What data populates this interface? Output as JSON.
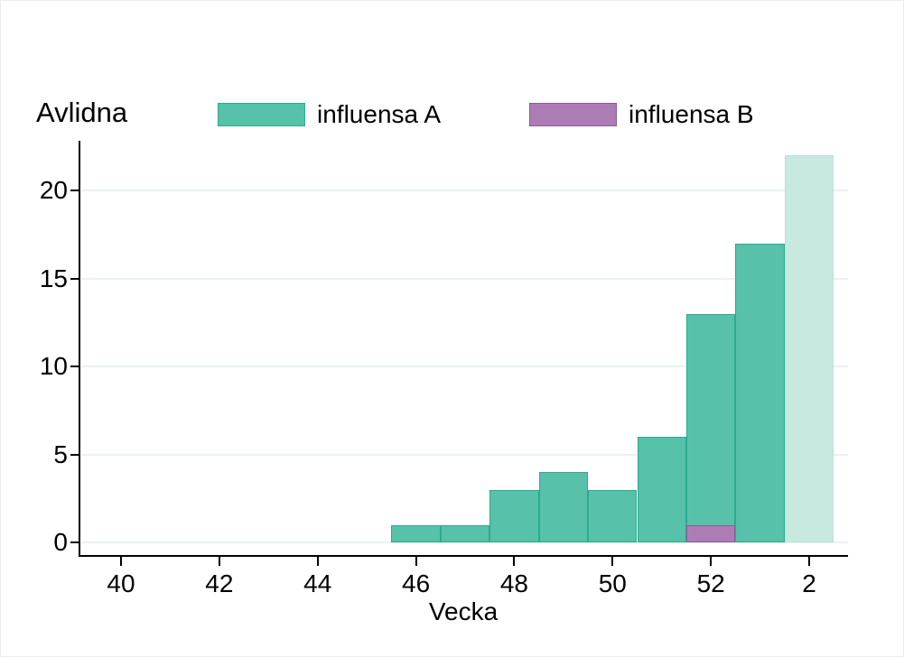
{
  "chart": {
    "ylabel_title": "Avlidna",
    "xlabel_title": "Vecka",
    "legend": [
      {
        "label": "influensa A",
        "color": "#57C1A9",
        "border": "#2BAB90"
      },
      {
        "label": "influensa B",
        "color": "#AC7DB5",
        "border": "#8D5A9B"
      }
    ],
    "colors": {
      "axis": "#000000",
      "gridline": "#EAF1F7",
      "background": "#FFFFFF"
    }
  },
  "chart_data": {
    "type": "bar",
    "title": "Avlidna",
    "xlabel": "Vecka",
    "ylabel": "Avlidna",
    "grid": "horizontal",
    "legend_position": "top",
    "ylim": [
      0,
      23
    ],
    "y_ticks": [
      0,
      5,
      10,
      15,
      20
    ],
    "x_tick_labels": [
      "40",
      "42",
      "44",
      "46",
      "48",
      "50",
      "52",
      "2"
    ],
    "x_tick_positions": [
      40,
      42,
      44,
      46,
      48,
      50,
      52,
      54
    ],
    "x_note": "sequential influenza-season week scale: weeks 40-53 then week 2 of the new year",
    "series": [
      {
        "name": "influensa A",
        "color": "#57C1A9",
        "border_color": "#2BAB90",
        "faded_color": "#C7E9E0",
        "faded_border_color": "#B9E3D9",
        "bars": [
          {
            "pos": 46,
            "week": "46",
            "value": 1
          },
          {
            "pos": 47,
            "week": "47",
            "value": 1
          },
          {
            "pos": 48,
            "week": "48",
            "value": 3
          },
          {
            "pos": 49,
            "week": "49",
            "value": 4
          },
          {
            "pos": 50,
            "week": "50",
            "value": 3
          },
          {
            "pos": 51,
            "week": "51",
            "value": 6
          },
          {
            "pos": 52,
            "week": "52",
            "value": 13
          },
          {
            "pos": 53,
            "week": "53",
            "value": 17
          },
          {
            "pos": 54,
            "week": "2",
            "value": 22,
            "faded": true
          }
        ]
      },
      {
        "name": "influensa B",
        "color": "#AC7DB5",
        "border_color": "#8D5A9B",
        "bars": [
          {
            "pos": 52,
            "week": "52",
            "value": 1
          }
        ]
      }
    ]
  }
}
